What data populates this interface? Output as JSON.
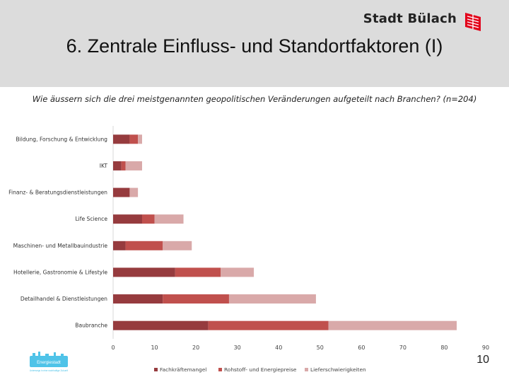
{
  "header": {
    "brand": "Stadt Bülach",
    "title": "6. Zentrale Einfluss- und Standortfaktoren (I)"
  },
  "question": "Wie äussern sich die drei meistgenannten geopolitischen Veränderungen aufgeteilt nach Branchen? (n=204)",
  "page_number": "10",
  "logo": {
    "text": "Energiestadt",
    "subtext": "Unterwegs in eine nachhaltige Zukunft"
  },
  "colors": {
    "header_bg": "#dcdcdc",
    "brand_red": "#e2001a"
  },
  "chart_data": {
    "type": "bar",
    "orientation": "horizontal",
    "stacked": true,
    "categories": [
      "Bildung, Forschung & Entwicklung",
      "IKT",
      "Finanz- & Beratungsdienstleistungen",
      "Life Science",
      "Maschinen- und Metallbauindustrie",
      "Hotellerie, Gastronomie & Lifestyle",
      "Detailhandel & Dienstleistungen",
      "Baubranche"
    ],
    "series": [
      {
        "name": "Fachkräftemangel",
        "color": "#963b3e",
        "values": [
          4,
          2,
          4,
          7,
          3,
          15,
          12,
          23
        ]
      },
      {
        "name": "Rohstoff- und Energiepreise",
        "color": "#c0504d",
        "values": [
          2,
          1,
          0,
          3,
          9,
          11,
          16,
          29
        ]
      },
      {
        "name": "Lieferschwierigkeiten",
        "color": "#d9a9a9",
        "values": [
          1,
          4,
          2,
          7,
          7,
          8,
          21,
          31
        ]
      }
    ],
    "xlim": [
      0,
      90
    ],
    "xticks": [
      "0",
      "10",
      "20",
      "30",
      "40",
      "50",
      "60",
      "70",
      "80",
      "90"
    ],
    "legend_position": "bottom",
    "grid": false
  }
}
